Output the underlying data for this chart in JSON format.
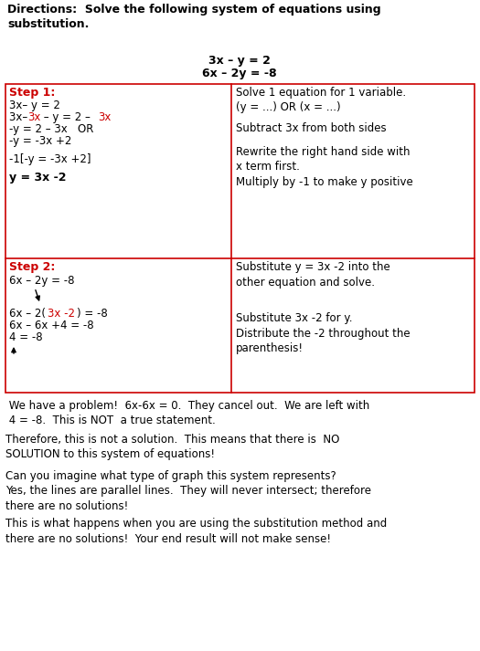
{
  "bg_color": "#ffffff",
  "red": "#cc0000",
  "black": "#000000",
  "directions": "Directions:  Solve the following system of equations using substitution.",
  "eq1": "3x – y = 2",
  "eq2": "6x – 2y = -8",
  "bottom_text1": " We have a problem!  6x-6x = 0.  They cancel out.  We are left with\n 4 = -8.  This is NOT  a true statement.",
  "bottom_text2": "Therefore, this is not a solution.  This means that there is  NO\nSOLUTION to this system of equations!",
  "bottom_text3": "Can you imagine what type of graph this system represents?\nYes, the lines are parallel lines.  They will never intersect; therefore\nthere are no solutions!",
  "bottom_text4": "This is what happens when you are using the substitution method and\nthere are no solutions!  Your end result will not make sense!",
  "fs": 8.5,
  "fs_bold": 9.0
}
